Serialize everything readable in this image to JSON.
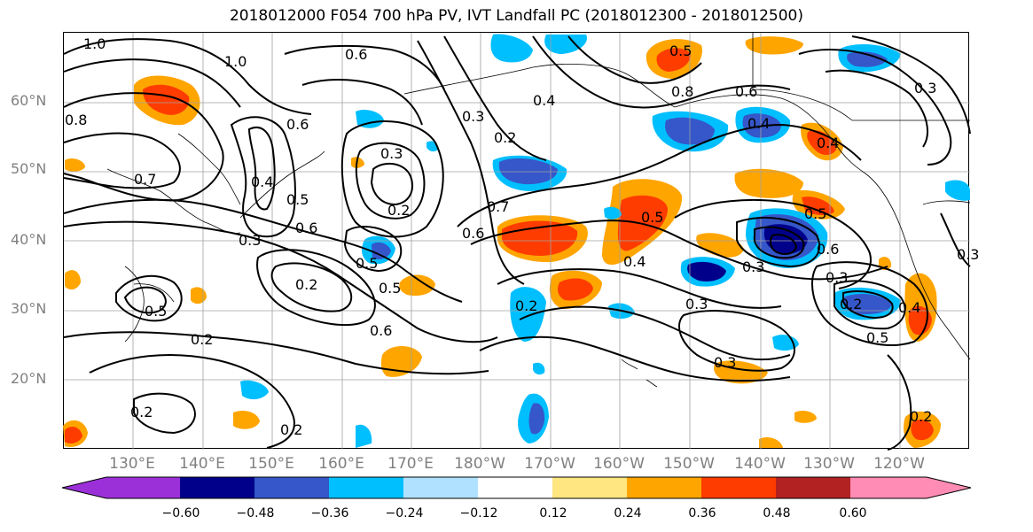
{
  "title": "2018012000 F054 700 hPa PV, IVT Landfall PC (2018012300 - 2018012500)",
  "map": {
    "lat_labels": [
      "60°N",
      "50°N",
      "40°N",
      "30°N",
      "20°N"
    ],
    "lon_labels": [
      "130°E",
      "140°E",
      "150°E",
      "160°E",
      "170°E",
      "180°W",
      "170°W",
      "160°W",
      "150°W",
      "140°W",
      "130°W",
      "120°W"
    ],
    "contour_labels": [
      "1.0",
      "1.0",
      "0.8",
      "0.7",
      "0.6",
      "0.4",
      "0.5",
      "0.6",
      "0.3",
      "0.3",
      "0.2",
      "0.2",
      "0.5",
      "0.2",
      "0.6",
      "0.5",
      "0.6",
      "0.5",
      "0.4",
      "0.3",
      "0.2",
      "0.2",
      "0.4",
      "0.8",
      "0.6",
      "0.4",
      "0.5",
      "0.6",
      "0.3",
      "0.3",
      "0.3",
      "0.2",
      "0.5",
      "0.2",
      "0.4",
      "0.3",
      "0.2",
      "0.4",
      "0.6",
      "0.7",
      "0.3",
      "0.5",
      "0.5",
      "0.3",
      "0.2"
    ],
    "colors": {
      "grid": "#a0a0a0",
      "contour": "#000000",
      "coast": "#000000"
    }
  },
  "colorbar": {
    "colors": [
      "#9b30d9",
      "#00008b",
      "#3557c9",
      "#00bfff",
      "#b0e2ff",
      "#ffffff",
      "#ffe680",
      "#ffa500",
      "#ff3c00",
      "#b22222",
      "#ff8cb4"
    ],
    "tick_labels": [
      "−0.60",
      "−0.48",
      "−0.36",
      "−0.24",
      "−0.12",
      "0.12",
      "0.24",
      "0.36",
      "0.48",
      "0.60"
    ],
    "extend": "both"
  }
}
